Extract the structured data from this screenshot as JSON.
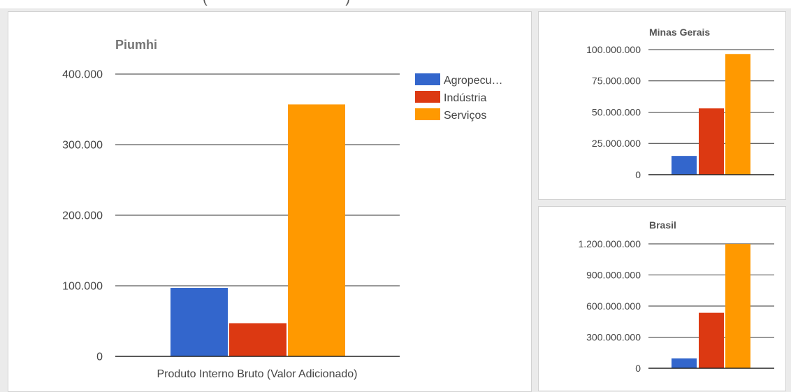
{
  "chart_data": [
    {
      "id": "piumhi",
      "type": "bar",
      "title": "Piumhi",
      "categories": [
        "Produto Interno Bruto (Valor Adicionado)"
      ],
      "series": [
        {
          "name": "Agropecu…",
          "values": [
            97000
          ],
          "color": "#3366cc"
        },
        {
          "name": "Indústria",
          "values": [
            47000
          ],
          "color": "#dc3912"
        },
        {
          "name": "Serviços",
          "values": [
            357000
          ],
          "color": "#ff9900"
        }
      ],
      "yticks": [
        "0",
        "100.000",
        "200.000",
        "300.000",
        "400.000"
      ],
      "tick_values": [
        0,
        100000,
        200000,
        300000,
        400000
      ],
      "ylim": [
        0,
        400000
      ],
      "grid": true,
      "legend": "right"
    },
    {
      "id": "minas",
      "type": "bar",
      "title": "Minas Gerais",
      "categories": [
        ""
      ],
      "series": [
        {
          "values": [
            15000000
          ],
          "color": "#3366cc"
        },
        {
          "values": [
            53000000
          ],
          "color": "#dc3912"
        },
        {
          "values": [
            96500000
          ],
          "color": "#ff9900"
        }
      ],
      "yticks": [
        "0",
        "25.000.000",
        "50.000.000",
        "75.000.000",
        "100.000.000"
      ],
      "tick_values": [
        0,
        25000000,
        50000000,
        75000000,
        100000000
      ],
      "ylim": [
        0,
        100000000
      ],
      "grid": true,
      "legend": "none"
    },
    {
      "id": "brasil",
      "type": "bar",
      "title": "Brasil",
      "categories": [
        ""
      ],
      "series": [
        {
          "values": [
            95000000
          ],
          "color": "#3366cc"
        },
        {
          "values": [
            535000000
          ],
          "color": "#dc3912"
        },
        {
          "values": [
            1200000000
          ],
          "color": "#ff9900"
        }
      ],
      "yticks": [
        "0",
        "300.000.000",
        "600.000.000",
        "900.000.000",
        "1.200.000.000"
      ],
      "tick_values": [
        0,
        300000000,
        600000000,
        900000000,
        1200000000
      ],
      "ylim": [
        0,
        1200000000
      ],
      "grid": true,
      "legend": "none"
    }
  ]
}
